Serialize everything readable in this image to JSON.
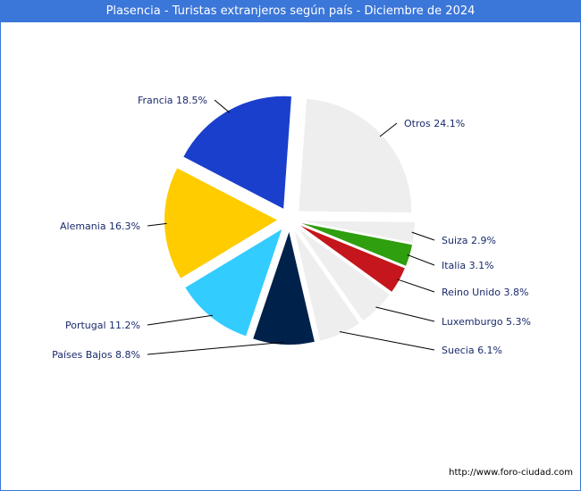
{
  "chart_data": {
    "type": "pie",
    "title": "Plasencia - Turistas extranjeros según país - Diciembre de 2024",
    "slices": [
      {
        "name": "Otros",
        "label": "Otros 24.1%",
        "value": 24.1,
        "color": "#eeeeee"
      },
      {
        "name": "Suiza",
        "label": "Suiza 2.9%",
        "value": 2.9,
        "color": "#eeeeee"
      },
      {
        "name": "Italia",
        "label": "Italia 3.1%",
        "value": 3.1,
        "color": "#2f9e0f"
      },
      {
        "name": "Reino Unido",
        "label": "Reino Unido 3.8%",
        "value": 3.8,
        "color": "#c4161c"
      },
      {
        "name": "Luxemburgo",
        "label": "Luxemburgo 5.3%",
        "value": 5.3,
        "color": "#eeeeee"
      },
      {
        "name": "Suecia",
        "label": "Suecia 6.1%",
        "value": 6.1,
        "color": "#eeeeee"
      },
      {
        "name": "Países Bajos",
        "label": "Países Bajos 8.8%",
        "value": 8.8,
        "color": "#00224a"
      },
      {
        "name": "Portugal",
        "label": "Portugal 11.2%",
        "value": 11.2,
        "color": "#33ccff"
      },
      {
        "name": "Alemania",
        "label": "Alemania 16.3%",
        "value": 16.3,
        "color": "#ffcc00"
      },
      {
        "name": "Francia",
        "label": "Francia 18.5%",
        "value": 18.5,
        "color": "#1a3fcc"
      }
    ]
  },
  "footer": {
    "source": "http://www.foro-ciudad.com"
  }
}
